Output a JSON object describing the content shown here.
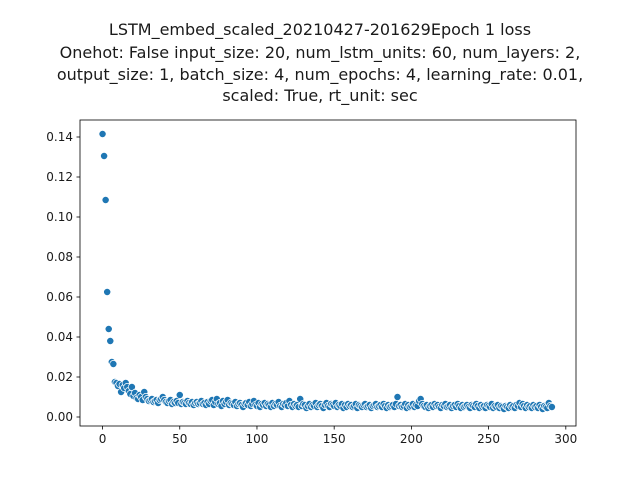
{
  "chart_data": {
    "type": "scatter",
    "title_lines": [
      "LSTM_embed_scaled_20210427-201629Epoch 1 loss",
      "Onehot: False input_size: 20, num_lstm_units: 60, num_layers: 2,",
      "output_size: 1, batch_size: 4, num_epochs: 4, learning_rate: 0.01,",
      "scaled: True, rt_unit: sec"
    ],
    "xlabel": "",
    "ylabel": "",
    "xlim": [
      -14.6,
      306.6
    ],
    "ylim": [
      -0.0045,
      0.1485
    ],
    "xticks": [
      0,
      50,
      100,
      150,
      200,
      250,
      300
    ],
    "xtick_labels": [
      "0",
      "50",
      "100",
      "150",
      "200",
      "250",
      "300"
    ],
    "yticks": [
      0.0,
      0.02,
      0.04,
      0.06,
      0.08,
      0.1,
      0.12,
      0.14
    ],
    "ytick_labels": [
      "0.00",
      "0.02",
      "0.04",
      "0.06",
      "0.08",
      "0.10",
      "0.12",
      "0.14"
    ],
    "grid": false,
    "marker_color": "#1f77b4",
    "series": [
      {
        "x": [
          0,
          1,
          2,
          3,
          4,
          5,
          6,
          7,
          8,
          9,
          10,
          11,
          12,
          13,
          14,
          15,
          16,
          17,
          18,
          19,
          20,
          21,
          22,
          23,
          24,
          25,
          26,
          27,
          28,
          29,
          30,
          31,
          32,
          33,
          34,
          35,
          36,
          37,
          38,
          39,
          40,
          41,
          42,
          43,
          44,
          45,
          46,
          47,
          48,
          49,
          50,
          51,
          52,
          53,
          54,
          55,
          56,
          57,
          58,
          59,
          60,
          61,
          62,
          63,
          64,
          65,
          66,
          67,
          68,
          69,
          70,
          71,
          72,
          73,
          74,
          75,
          76,
          77,
          78,
          79,
          80,
          81,
          82,
          83,
          84,
          85,
          86,
          87,
          88,
          89,
          90,
          91,
          92,
          93,
          94,
          95,
          96,
          97,
          98,
          99,
          100,
          101,
          102,
          103,
          104,
          105,
          106,
          107,
          108,
          109,
          110,
          111,
          112,
          113,
          114,
          115,
          116,
          117,
          118,
          119,
          120,
          121,
          122,
          123,
          124,
          125,
          126,
          127,
          128,
          129,
          130,
          131,
          132,
          133,
          134,
          135,
          136,
          137,
          138,
          139,
          140,
          141,
          142,
          143,
          144,
          145,
          146,
          147,
          148,
          149,
          150,
          151,
          152,
          153,
          154,
          155,
          156,
          157,
          158,
          159,
          160,
          161,
          162,
          163,
          164,
          165,
          166,
          167,
          168,
          169,
          170,
          171,
          172,
          173,
          174,
          175,
          176,
          177,
          178,
          179,
          180,
          181,
          182,
          183,
          184,
          185,
          186,
          187,
          188,
          189,
          190,
          191,
          192,
          193,
          194,
          195,
          196,
          197,
          198,
          199,
          200,
          201,
          202,
          203,
          204,
          205,
          206,
          207,
          208,
          209,
          210,
          211,
          212,
          213,
          214,
          215,
          216,
          217,
          218,
          219,
          220,
          221,
          222,
          223,
          224,
          225,
          226,
          227,
          228,
          229,
          230,
          231,
          232,
          233,
          234,
          235,
          236,
          237,
          238,
          239,
          240,
          241,
          242,
          243,
          244,
          245,
          246,
          247,
          248,
          249,
          250,
          251,
          252,
          253,
          254,
          255,
          256,
          257,
          258,
          259,
          260,
          261,
          262,
          263,
          264,
          265,
          266,
          267,
          268,
          269,
          270,
          271,
          272,
          273,
          274,
          275,
          276,
          277,
          278,
          279,
          280,
          281,
          282,
          283,
          284,
          285,
          286,
          287,
          288,
          289,
          290,
          291
        ],
        "y": [
          0.1415,
          0.1305,
          0.1085,
          0.0625,
          0.044,
          0.038,
          0.0275,
          0.0265,
          0.0175,
          0.017,
          0.0155,
          0.0165,
          0.0125,
          0.016,
          0.0145,
          0.017,
          0.015,
          0.013,
          0.0115,
          0.015,
          0.0105,
          0.012,
          0.0095,
          0.009,
          0.011,
          0.01,
          0.0085,
          0.0125,
          0.01,
          0.009,
          0.008,
          0.0085,
          0.009,
          0.0075,
          0.008,
          0.0085,
          0.007,
          0.0085,
          0.009,
          0.01,
          0.0085,
          0.0075,
          0.007,
          0.008,
          0.0085,
          0.0065,
          0.0075,
          0.007,
          0.008,
          0.007,
          0.011,
          0.0065,
          0.0075,
          0.007,
          0.0065,
          0.008,
          0.007,
          0.0065,
          0.0075,
          0.006,
          0.007,
          0.0075,
          0.0065,
          0.007,
          0.008,
          0.0065,
          0.007,
          0.006,
          0.0075,
          0.0065,
          0.008,
          0.0085,
          0.006,
          0.0075,
          0.009,
          0.0065,
          0.007,
          0.0055,
          0.008,
          0.0065,
          0.0075,
          0.0085,
          0.006,
          0.007,
          0.0065,
          0.006,
          0.0075,
          0.0055,
          0.0065,
          0.007,
          0.006,
          0.005,
          0.0065,
          0.007,
          0.006,
          0.0075,
          0.0055,
          0.0065,
          0.008,
          0.006,
          0.0055,
          0.007,
          0.005,
          0.0065,
          0.006,
          0.007,
          0.0055,
          0.0065,
          0.006,
          0.005,
          0.007,
          0.0055,
          0.0065,
          0.006,
          0.0075,
          0.0055,
          0.005,
          0.0065,
          0.006,
          0.007,
          0.0055,
          0.008,
          0.006,
          0.005,
          0.0065,
          0.0055,
          0.006,
          0.005,
          0.009,
          0.0055,
          0.0065,
          0.006,
          0.0045,
          0.0055,
          0.0065,
          0.005,
          0.006,
          0.0055,
          0.007,
          0.005,
          0.006,
          0.0065,
          0.0055,
          0.0045,
          0.006,
          0.007,
          0.0055,
          0.005,
          0.0065,
          0.006,
          0.0055,
          0.007,
          0.005,
          0.006,
          0.0055,
          0.0065,
          0.0045,
          0.006,
          0.005,
          0.0065,
          0.0055,
          0.006,
          0.005,
          0.0055,
          0.0065,
          0.0045,
          0.006,
          0.0055,
          0.005,
          0.006,
          0.0065,
          0.005,
          0.0055,
          0.006,
          0.0045,
          0.0055,
          0.006,
          0.0065,
          0.005,
          0.0055,
          0.006,
          0.005,
          0.0065,
          0.0055,
          0.0045,
          0.006,
          0.005,
          0.0055,
          0.006,
          0.005,
          0.0065,
          0.01,
          0.0055,
          0.006,
          0.005,
          0.0055,
          0.0065,
          0.0045,
          0.006,
          0.005,
          0.0055,
          0.0065,
          0.005,
          0.006,
          0.0055,
          0.008,
          0.009,
          0.0065,
          0.0055,
          0.005,
          0.006,
          0.0045,
          0.0055,
          0.006,
          0.005,
          0.0065,
          0.0055,
          0.006,
          0.005,
          0.0045,
          0.006,
          0.0055,
          0.0065,
          0.005,
          0.0055,
          0.006,
          0.0045,
          0.0055,
          0.006,
          0.005,
          0.0065,
          0.0055,
          0.0045,
          0.006,
          0.005,
          0.0055,
          0.006,
          0.005,
          0.0045,
          0.006,
          0.0055,
          0.005,
          0.0065,
          0.0055,
          0.0045,
          0.006,
          0.005,
          0.0055,
          0.0045,
          0.006,
          0.0055,
          0.005,
          0.0065,
          0.0045,
          0.0055,
          0.005,
          0.006,
          0.0045,
          0.0055,
          0.005,
          0.004,
          0.0055,
          0.005,
          0.0045,
          0.006,
          0.005,
          0.0055,
          0.0045,
          0.006,
          0.0055,
          0.007,
          0.005,
          0.0065,
          0.0055,
          0.0045,
          0.006,
          0.005,
          0.0055,
          0.0045,
          0.006,
          0.005,
          0.0055,
          0.0045,
          0.006,
          0.005,
          0.004,
          0.0055,
          0.005,
          0.0045,
          0.007,
          0.0055,
          0.005
        ]
      }
    ]
  }
}
